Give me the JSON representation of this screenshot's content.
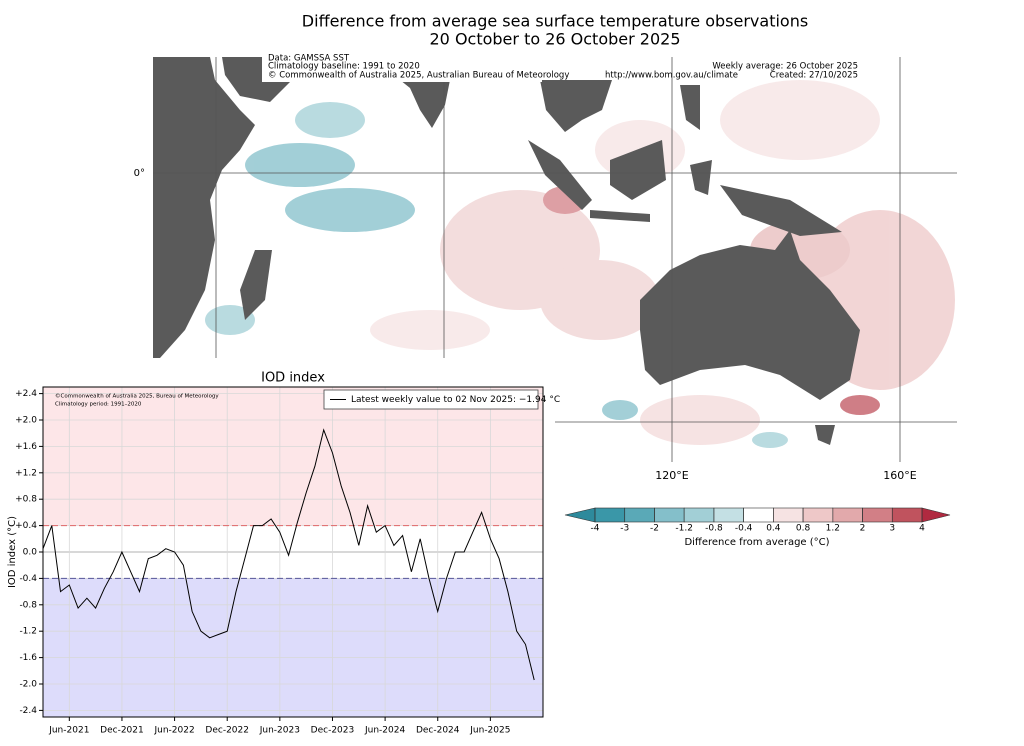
{
  "map": {
    "title": "Difference from average sea surface temperature observations",
    "subtitle": "20 October to 26 October 2025",
    "info_left": [
      "Data: GAMSSA SST",
      "Climatology baseline: 1991 to 2020",
      "© Commonwealth of Australia 2025, Australian Bureau of Meteorology"
    ],
    "url": "http://www.bom.gov.au/climate",
    "info_right": [
      "Weekly average: 26 October 2025",
      "Created: 27/10/2025"
    ],
    "lat_labels": [
      "0°"
    ],
    "lon_labels": [
      "120°E",
      "160°E"
    ],
    "colorbar": {
      "label": "Difference from average (°C)",
      "ticks": [
        -4,
        -3,
        -2,
        -1.2,
        -0.8,
        -0.4,
        0.4,
        0.8,
        1.2,
        2,
        3,
        4
      ],
      "colors": [
        "#3a97a8",
        "#5aa9b7",
        "#84bfca",
        "#a2cfd6",
        "#c4e0e4",
        "#ffffff",
        "#f6e3e3",
        "#eec8c8",
        "#e2a9ab",
        "#d27f86",
        "#c0535e"
      ],
      "extend_colors": [
        "#2e8a9c",
        "#b02a40"
      ]
    }
  },
  "chart_data": {
    "type": "line",
    "title": "IOD index",
    "ylabel": "IOD index (°C)",
    "notes": [
      "©Commonwealth of Australia 2025, Bureau of Meteorology",
      "Climatology period: 1991–2020"
    ],
    "x": [
      "2021-03",
      "2021-04",
      "2021-05",
      "2021-06",
      "2021-07",
      "2021-08",
      "2021-09",
      "2021-10",
      "2021-11",
      "2021-12",
      "2022-01",
      "2022-02",
      "2022-03",
      "2022-04",
      "2022-05",
      "2022-06",
      "2022-07",
      "2022-08",
      "2022-09",
      "2022-10",
      "2022-11",
      "2022-12",
      "2023-01",
      "2023-02",
      "2023-03",
      "2023-04",
      "2023-05",
      "2023-06",
      "2023-07",
      "2023-08",
      "2023-09",
      "2023-10",
      "2023-11",
      "2023-12",
      "2024-01",
      "2024-02",
      "2024-03",
      "2024-04",
      "2024-05",
      "2024-06",
      "2024-07",
      "2024-08",
      "2024-09",
      "2024-10",
      "2024-11",
      "2024-12",
      "2025-01",
      "2025-02",
      "2025-03",
      "2025-04",
      "2025-05",
      "2025-06",
      "2025-07",
      "2025-08",
      "2025-09",
      "2025-10",
      "2025-11"
    ],
    "series": [
      {
        "name": "Latest weekly value to 02 Nov 2025: −1.94 °C",
        "color": "#000000",
        "values": [
          0.05,
          0.4,
          -0.6,
          -0.5,
          -0.85,
          -0.7,
          -0.85,
          -0.55,
          -0.3,
          0.0,
          -0.3,
          -0.6,
          -0.1,
          -0.05,
          0.05,
          0.0,
          -0.2,
          -0.9,
          -1.2,
          -1.3,
          -1.25,
          -1.2,
          -0.6,
          -0.1,
          0.4,
          0.4,
          0.5,
          0.3,
          -0.05,
          0.45,
          0.9,
          1.3,
          1.85,
          1.5,
          1.0,
          0.6,
          0.1,
          0.7,
          0.3,
          0.4,
          0.1,
          0.25,
          -0.3,
          0.2,
          -0.4,
          -0.9,
          -0.4,
          0.0,
          0.0,
          0.3,
          0.6,
          0.2,
          -0.1,
          -0.6,
          -1.2,
          -1.4,
          -1.94
        ]
      }
    ],
    "xlim": [
      "2021-03",
      "2025-12"
    ],
    "xticks": [
      {
        "value": "2021-06",
        "label": "Jun-2021"
      },
      {
        "value": "2021-12",
        "label": "Dec-2021"
      },
      {
        "value": "2022-06",
        "label": "Jun-2022"
      },
      {
        "value": "2022-12",
        "label": "Dec-2022"
      },
      {
        "value": "2023-06",
        "label": "Jun-2023"
      },
      {
        "value": "2023-12",
        "label": "Dec-2023"
      },
      {
        "value": "2024-06",
        "label": "Jun-2024"
      },
      {
        "value": "2024-12",
        "label": "Dec-2024"
      },
      {
        "value": "2025-06",
        "label": "Jun-2025"
      }
    ],
    "ylim": [
      -2.5,
      2.5
    ],
    "yticks": [
      {
        "value": 2.4,
        "label": "+2.4"
      },
      {
        "value": 2.0,
        "label": "+2.0"
      },
      {
        "value": 1.6,
        "label": "+1.6"
      },
      {
        "value": 1.2,
        "label": "+1.2"
      },
      {
        "value": 0.8,
        "label": "+0.8"
      },
      {
        "value": 0.4,
        "label": "+0.4"
      },
      {
        "value": 0,
        "label": "0.0"
      },
      {
        "value": -0.4,
        "label": "-0.4"
      },
      {
        "value": -0.8,
        "label": "-0.8"
      },
      {
        "value": -1.2,
        "label": "-1.2"
      },
      {
        "value": -1.6,
        "label": "-1.6"
      },
      {
        "value": -2.0,
        "label": "-2.0"
      },
      {
        "value": -2.4,
        "label": "-2.4"
      }
    ],
    "thresholds": [
      {
        "value": 0.4,
        "color": "#e06666",
        "fill": "#fde6e8"
      },
      {
        "value": -0.4,
        "color": "#555599",
        "fill": "#dddcfb"
      }
    ],
    "grid": true,
    "legend": "upper right"
  }
}
